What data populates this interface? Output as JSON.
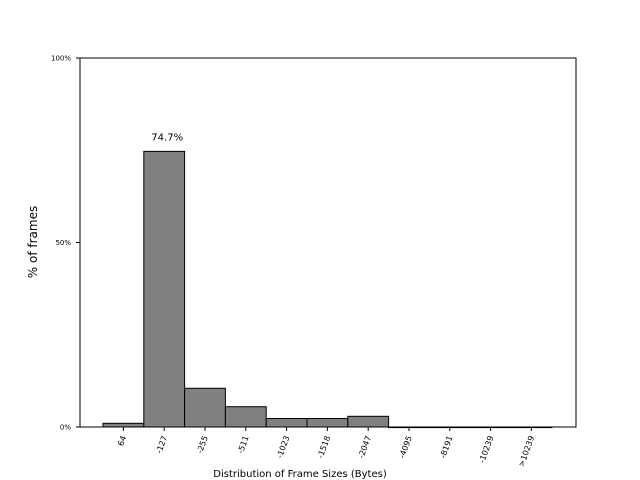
{
  "chart_data": {
    "type": "bar",
    "categories": [
      "64",
      "-127",
      "-255",
      "-511",
      "-1023",
      "-1518",
      "-2047",
      "-4095",
      "-8191",
      "-10239",
      ">10239"
    ],
    "values": [
      1.0,
      74.7,
      10.5,
      5.5,
      2.3,
      2.3,
      2.9,
      0.0,
      0.0,
      0.0,
      0.0
    ],
    "data_labels": [
      {
        "category_index": 1,
        "text": "74.7%"
      }
    ],
    "xlabel": "Distribution of Frame Sizes (Bytes)",
    "ylabel": "% of frames",
    "ylim": [
      0,
      100
    ],
    "yticks": [
      {
        "value": 0,
        "label": "0%"
      },
      {
        "value": 50,
        "label": "50%"
      },
      {
        "value": 100,
        "label": "100%"
      }
    ],
    "grid": false,
    "bar_color": "#808080",
    "edge_color": "#000000"
  }
}
